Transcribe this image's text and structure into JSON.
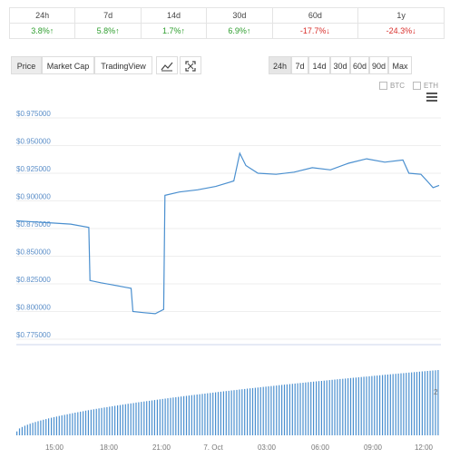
{
  "performance": {
    "headers": [
      "24h",
      "7d",
      "14d",
      "30d",
      "60d",
      "1y"
    ],
    "values": [
      "3.8%↑",
      "5.8%↑",
      "1.7%↑",
      "6.9%↑",
      "-17.7%↓",
      "-24.3%↓"
    ],
    "value_colors": [
      "#2e9e2e",
      "#2e9e2e",
      "#2e9e2e",
      "#2e9e2e",
      "#d9302c",
      "#d9302c"
    ]
  },
  "chart_tabs": {
    "price": "Price",
    "market_cap": "Market Cap",
    "tradingview": "TradingView"
  },
  "icons": {
    "chart_type": "line-chart-icon",
    "fullscreen": "expand-icon",
    "menu": "hamburger-menu-icon"
  },
  "timeframes": [
    "24h",
    "7d",
    "14d",
    "30d",
    "60d",
    "90d",
    "Max"
  ],
  "active_timeframe": "24h",
  "legend": {
    "btc": "BTC",
    "eth": "ETH"
  },
  "chart_data": {
    "type": "line",
    "series_color": "#4a8fcf",
    "y_ticks": [
      "$0.975000",
      "$0.950000",
      "$0.925000",
      "$0.900000",
      "$0.875000",
      "$0.850000",
      "$0.825000",
      "$0.800000",
      "$0.775000"
    ],
    "ylim": [
      0.775,
      0.975
    ],
    "x_ticks": [
      "15:00",
      "18:00",
      "21:00",
      "7. Oct",
      "03:00",
      "06:00",
      "09:00",
      "12:00"
    ],
    "price_points": [
      [
        0,
        0.882
      ],
      [
        3,
        0.881
      ],
      [
        6,
        0.88
      ],
      [
        9,
        0.879
      ],
      [
        12,
        0.876
      ],
      [
        12.2,
        0.828
      ],
      [
        14,
        0.826
      ],
      [
        16,
        0.824
      ],
      [
        18,
        0.822
      ],
      [
        19,
        0.821
      ],
      [
        19.3,
        0.8
      ],
      [
        21,
        0.799
      ],
      [
        23,
        0.798
      ],
      [
        24.4,
        0.802
      ],
      [
        24.6,
        0.905
      ],
      [
        27,
        0.908
      ],
      [
        30,
        0.91
      ],
      [
        33,
        0.913
      ],
      [
        36,
        0.918
      ],
      [
        37,
        0.943
      ],
      [
        38,
        0.932
      ],
      [
        40,
        0.925
      ],
      [
        43,
        0.924
      ],
      [
        46,
        0.926
      ],
      [
        49,
        0.93
      ],
      [
        52,
        0.928
      ],
      [
        55,
        0.934
      ],
      [
        58,
        0.938
      ],
      [
        61,
        0.935
      ],
      [
        64,
        0.937
      ],
      [
        65,
        0.925
      ],
      [
        67,
        0.924
      ],
      [
        68,
        0.918
      ],
      [
        69,
        0.912
      ],
      [
        70,
        0.914
      ]
    ],
    "volume_level_start": 0.06,
    "volume_level_end": 1.0,
    "volume_label": "2"
  }
}
